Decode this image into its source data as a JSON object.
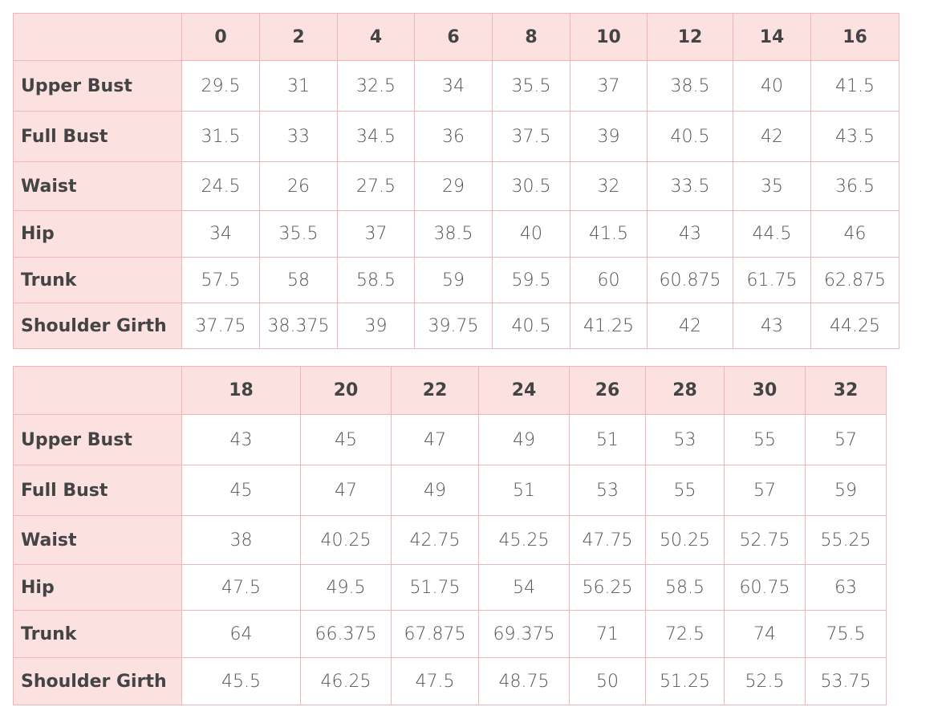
{
  "tables": [
    {
      "header": [
        "0",
        "2",
        "4",
        "6",
        "8",
        "10",
        "12",
        "14",
        "16"
      ],
      "rows": [
        {
          "label": "Upper Bust",
          "cells": [
            "29.5",
            "31",
            "32.5",
            "34",
            "35.5",
            "37",
            "38.5",
            "40",
            "41.5"
          ]
        },
        {
          "label": "Full Bust",
          "cells": [
            "31.5",
            "33",
            "34.5",
            "36",
            "37.5",
            "39",
            "40.5",
            "42",
            "43.5"
          ]
        },
        {
          "label": "Waist",
          "cells": [
            "24.5",
            "26",
            "27.5",
            "29",
            "30.5",
            "32",
            "33.5",
            "35",
            "36.5"
          ]
        },
        {
          "label": "Hip",
          "cells": [
            "34",
            "35.5",
            "37",
            "38.5",
            "40",
            "41.5",
            "43",
            "44.5",
            "46"
          ]
        },
        {
          "label": "Trunk",
          "cells": [
            "57.5",
            "58",
            "58.5",
            "59",
            "59.5",
            "60",
            "60.875",
            "61.75",
            "62.875"
          ]
        },
        {
          "label": "Shoulder Girth",
          "cells": [
            "37.75",
            "38.375",
            "39",
            "39.75",
            "40.5",
            "41.25",
            "42",
            "43",
            "44.25"
          ]
        }
      ]
    },
    {
      "header": [
        "18",
        "20",
        "22",
        "24",
        "26",
        "28",
        "30",
        "32"
      ],
      "rows": [
        {
          "label": "Upper Bust",
          "cells": [
            "43",
            "45",
            "47",
            "49",
            "51",
            "53",
            "55",
            "57"
          ]
        },
        {
          "label": "Full Bust",
          "cells": [
            "45",
            "47",
            "49",
            "51",
            "53",
            "55",
            "57",
            "59"
          ]
        },
        {
          "label": "Waist",
          "cells": [
            "38",
            "40.25",
            "42.75",
            "45.25",
            "47.75",
            "50.25",
            "52.75",
            "55.25"
          ]
        },
        {
          "label": "Hip",
          "cells": [
            "47.5",
            "49.5",
            "51.75",
            "54",
            "56.25",
            "58.5",
            "60.75",
            "63"
          ]
        },
        {
          "label": "Trunk",
          "cells": [
            "64",
            "66.375",
            "67.875",
            "69.375",
            "71",
            "72.5",
            "74",
            "75.5"
          ]
        },
        {
          "label": "Shoulder Girth",
          "cells": [
            "45.5",
            "46.25",
            "47.5",
            "48.75",
            "50",
            "51.25",
            "52.5",
            "53.75"
          ]
        }
      ]
    }
  ]
}
